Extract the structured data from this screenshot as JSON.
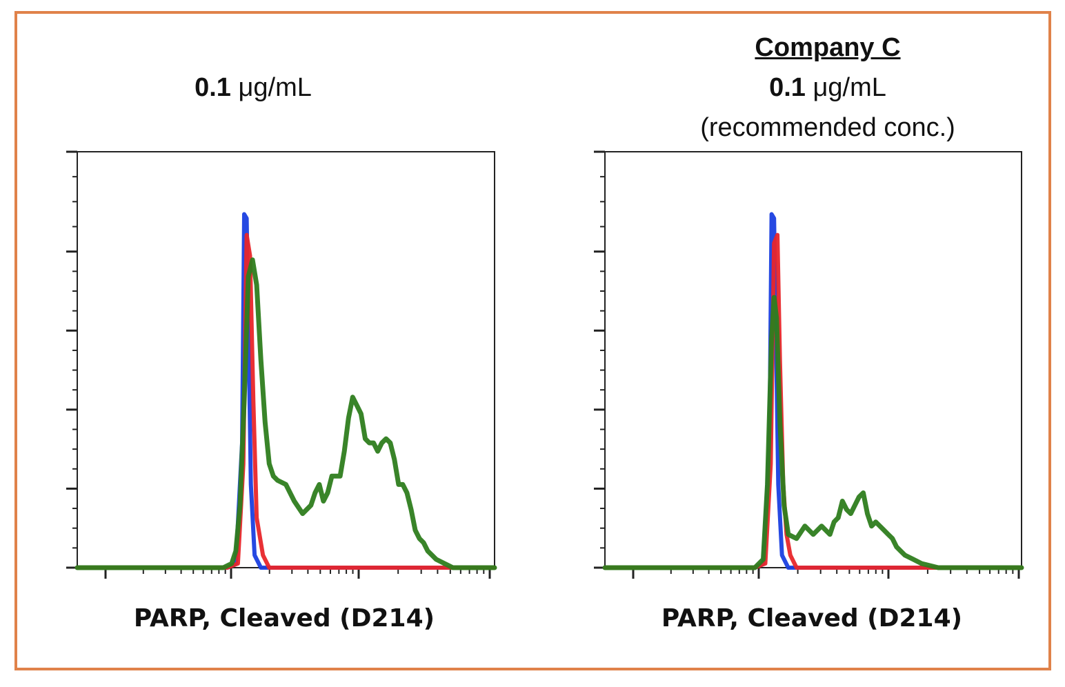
{
  "colors": {
    "frame": "#e0824a",
    "blue": "#1a3fe0",
    "red": "#e8262a",
    "green": "#2e7d1e"
  },
  "chart_data": [
    {
      "type": "line",
      "title": "0.1 μg/mL",
      "title_bold": "0.1",
      "title_rest": " μg/mL",
      "company": "",
      "note": "",
      "xlabel": "PARP, Cleaved (D214)",
      "ylabel": "",
      "xlim": [
        0,
        100
      ],
      "ylim": [
        0,
        100
      ],
      "series": [
        {
          "color": "#1a3fe0",
          "x": [
            0,
            36,
            38,
            39.5,
            40,
            40.6,
            41,
            41.6,
            42.5,
            44,
            100
          ],
          "y": [
            0,
            0,
            1,
            30,
            85,
            84,
            60,
            20,
            3,
            0,
            0
          ]
        },
        {
          "color": "#e8262a",
          "x": [
            0,
            36,
            38.5,
            39.8,
            40.6,
            41.4,
            42.2,
            43,
            44.5,
            46,
            100
          ],
          "y": [
            0,
            0,
            1,
            25,
            80,
            75,
            40,
            12,
            3,
            0,
            0
          ]
        },
        {
          "color": "#2e7d1e",
          "x": [
            0,
            35,
            37,
            38,
            39,
            40,
            41,
            42,
            43,
            44,
            45,
            46,
            47,
            48,
            50,
            52,
            54,
            56,
            57,
            58,
            59,
            60,
            61,
            63,
            64,
            65,
            66,
            67,
            68,
            69,
            70,
            71,
            72,
            73,
            74,
            75,
            76,
            77,
            78,
            79,
            80,
            81,
            82,
            83,
            84,
            85,
            86,
            88,
            89,
            90,
            91,
            100
          ],
          "y": [
            0,
            0,
            1,
            4,
            15,
            40,
            70,
            74,
            68,
            50,
            35,
            25,
            22,
            21,
            20,
            16,
            13,
            15,
            18,
            20,
            16,
            18,
            22,
            22,
            28,
            36,
            41,
            39,
            37,
            31,
            30,
            30,
            28,
            30,
            31,
            30,
            26,
            20,
            20,
            18,
            14,
            9,
            7,
            6,
            4,
            3,
            2,
            1,
            0.5,
            0,
            0,
            0
          ]
        }
      ],
      "x_axis_ticks": [
        "",
        "",
        "",
        ""
      ],
      "y_axis_ticks": [
        "",
        "",
        "",
        "",
        "",
        ""
      ]
    },
    {
      "type": "line",
      "title": "0.1 μg/mL",
      "title_bold": "0.1",
      "title_rest": " μg/mL",
      "company": "Company C",
      "note": "(recommended conc.)",
      "xlabel": "PARP, Cleaved (D214)",
      "ylabel": "",
      "xlim": [
        0,
        100
      ],
      "ylim": [
        0,
        100
      ],
      "series": [
        {
          "color": "#1a3fe0",
          "x": [
            0,
            36,
            38,
            39.5,
            40,
            40.6,
            41,
            41.6,
            42.5,
            44,
            100
          ],
          "y": [
            0,
            0,
            1,
            30,
            85,
            84,
            60,
            20,
            3,
            0,
            0
          ]
        },
        {
          "color": "#e8262a",
          "x": [
            0,
            36,
            38.5,
            39.8,
            40.6,
            41.4,
            42,
            42.8,
            43.6,
            44.5,
            46,
            100
          ],
          "y": [
            0,
            0,
            1,
            25,
            78,
            80,
            50,
            20,
            8,
            3,
            0,
            0
          ]
        },
        {
          "color": "#2e7d1e",
          "x": [
            0,
            36,
            38,
            39,
            40,
            40.6,
            41.2,
            42,
            43,
            44,
            46,
            48,
            50,
            52,
            54,
            55,
            56,
            57,
            58,
            59,
            60,
            61,
            62,
            63,
            64,
            65,
            66,
            67,
            68,
            69,
            70,
            71,
            72,
            74,
            76,
            78,
            80,
            82,
            84,
            86,
            88,
            90,
            100
          ],
          "y": [
            0,
            0,
            2,
            20,
            55,
            65,
            60,
            35,
            15,
            8,
            7,
            10,
            8,
            10,
            8,
            11,
            12,
            16,
            14,
            13,
            15,
            17,
            18,
            13,
            10,
            11,
            10,
            9,
            8,
            7,
            5,
            4,
            3,
            2,
            1,
            0.5,
            0,
            0,
            0,
            0,
            0,
            0,
            0
          ]
        }
      ],
      "x_axis_ticks": [
        "",
        "",
        "",
        ""
      ],
      "y_axis_ticks": [
        "",
        "",
        "",
        "",
        "",
        ""
      ]
    }
  ]
}
